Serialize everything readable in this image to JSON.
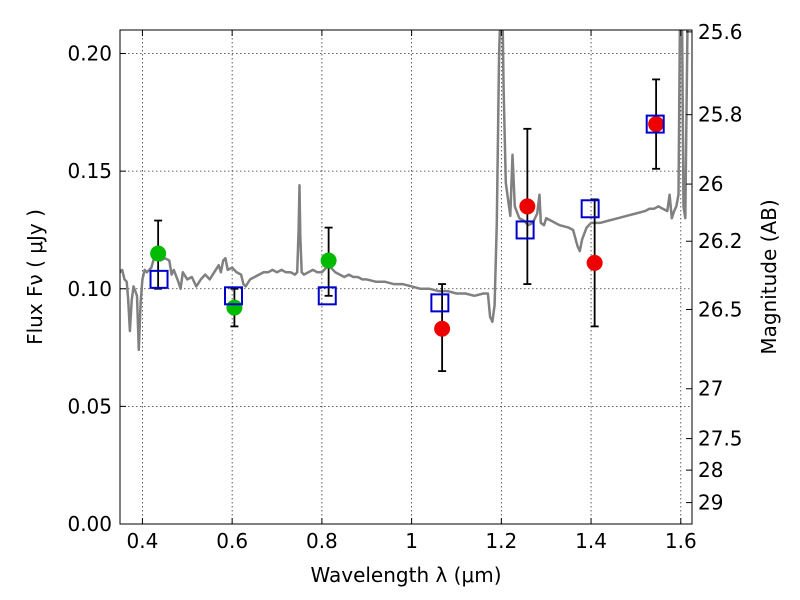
{
  "chart_data": {
    "type": "line",
    "title": "",
    "xlabel": "Wavelength  λ (μm)",
    "ylabel": "Flux  Fν  ( μJy )",
    "ylabel_right": "Magnitude (AB)",
    "xlim": [
      0.35,
      1.625
    ],
    "ylim": [
      0.0,
      0.21
    ],
    "grid": true,
    "x_ticks": [
      {
        "value": 0.4,
        "label": "0.4"
      },
      {
        "value": 0.6,
        "label": "0.6"
      },
      {
        "value": 0.8,
        "label": "0.8"
      },
      {
        "value": 1.0,
        "label": "1"
      },
      {
        "value": 1.2,
        "label": "1.2"
      },
      {
        "value": 1.4,
        "label": "1.4"
      },
      {
        "value": 1.6,
        "label": "1.6"
      }
    ],
    "y_ticks": [
      {
        "value": 0.0,
        "label": "0.00"
      },
      {
        "value": 0.05,
        "label": "0.05"
      },
      {
        "value": 0.1,
        "label": "0.10"
      },
      {
        "value": 0.15,
        "label": "0.15"
      },
      {
        "value": 0.2,
        "label": "0.20"
      }
    ],
    "mag_ticks": [
      {
        "flux": 0.2092,
        "label": "25.6"
      },
      {
        "flux": 0.174,
        "label": "25.8"
      },
      {
        "flux": 0.1445,
        "label": "26"
      },
      {
        "flux": 0.1202,
        "label": "26.2"
      },
      {
        "flux": 0.0912,
        "label": "26.5"
      },
      {
        "flux": 0.0575,
        "label": "27"
      },
      {
        "flux": 0.0363,
        "label": "27.5"
      },
      {
        "flux": 0.0229,
        "label": "28"
      },
      {
        "flux": 0.0091,
        "label": "29"
      }
    ],
    "colors": {
      "model": "#808080",
      "green": "#00bb00",
      "red": "#ee0000",
      "blue": "#0000cc",
      "error": "#000000"
    },
    "series": [
      {
        "kind": "model_spectrum",
        "points": [
          [
            0.35,
            0.107
          ],
          [
            0.355,
            0.108
          ],
          [
            0.36,
            0.104
          ],
          [
            0.365,
            0.103
          ],
          [
            0.368,
            0.096
          ],
          [
            0.372,
            0.082
          ],
          [
            0.376,
            0.095
          ],
          [
            0.38,
            0.101
          ],
          [
            0.384,
            0.099
          ],
          [
            0.388,
            0.097
          ],
          [
            0.392,
            0.074
          ],
          [
            0.396,
            0.094
          ],
          [
            0.4,
            0.104
          ],
          [
            0.405,
            0.108
          ],
          [
            0.41,
            0.107
          ],
          [
            0.42,
            0.109
          ],
          [
            0.43,
            0.116
          ],
          [
            0.435,
            0.118
          ],
          [
            0.44,
            0.112
          ],
          [
            0.45,
            0.113
          ],
          [
            0.46,
            0.112
          ],
          [
            0.465,
            0.106
          ],
          [
            0.47,
            0.108
          ],
          [
            0.48,
            0.103
          ],
          [
            0.485,
            0.1
          ],
          [
            0.49,
            0.107
          ],
          [
            0.5,
            0.104
          ],
          [
            0.51,
            0.105
          ],
          [
            0.52,
            0.101
          ],
          [
            0.53,
            0.104
          ],
          [
            0.54,
            0.106
          ],
          [
            0.55,
            0.104
          ],
          [
            0.56,
            0.107
          ],
          [
            0.57,
            0.11
          ],
          [
            0.575,
            0.107
          ],
          [
            0.58,
            0.112
          ],
          [
            0.585,
            0.113
          ],
          [
            0.59,
            0.108
          ],
          [
            0.6,
            0.109
          ],
          [
            0.61,
            0.107
          ],
          [
            0.62,
            0.106
          ],
          [
            0.625,
            0.102
          ],
          [
            0.63,
            0.101
          ],
          [
            0.64,
            0.104
          ],
          [
            0.65,
            0.105
          ],
          [
            0.66,
            0.106
          ],
          [
            0.67,
            0.107
          ],
          [
            0.68,
            0.107
          ],
          [
            0.69,
            0.108
          ],
          [
            0.7,
            0.107
          ],
          [
            0.71,
            0.108
          ],
          [
            0.72,
            0.107
          ],
          [
            0.73,
            0.107
          ],
          [
            0.74,
            0.106
          ],
          [
            0.745,
            0.107
          ],
          [
            0.748,
            0.125
          ],
          [
            0.75,
            0.144
          ],
          [
            0.752,
            0.122
          ],
          [
            0.755,
            0.107
          ],
          [
            0.76,
            0.106
          ],
          [
            0.77,
            0.107
          ],
          [
            0.78,
            0.108
          ],
          [
            0.79,
            0.107
          ],
          [
            0.8,
            0.107
          ],
          [
            0.81,
            0.109
          ],
          [
            0.815,
            0.112
          ],
          [
            0.82,
            0.109
          ],
          [
            0.83,
            0.107
          ],
          [
            0.84,
            0.106
          ],
          [
            0.85,
            0.105
          ],
          [
            0.86,
            0.106
          ],
          [
            0.87,
            0.105
          ],
          [
            0.88,
            0.105
          ],
          [
            0.89,
            0.104
          ],
          [
            0.9,
            0.104
          ],
          [
            0.92,
            0.103
          ],
          [
            0.94,
            0.103
          ],
          [
            0.96,
            0.102
          ],
          [
            0.98,
            0.102
          ],
          [
            1.0,
            0.101
          ],
          [
            1.02,
            0.1
          ],
          [
            1.04,
            0.1
          ],
          [
            1.06,
            0.099
          ],
          [
            1.08,
            0.099
          ],
          [
            1.1,
            0.098
          ],
          [
            1.12,
            0.098
          ],
          [
            1.14,
            0.097
          ],
          [
            1.16,
            0.098
          ],
          [
            1.17,
            0.098
          ],
          [
            1.175,
            0.088
          ],
          [
            1.18,
            0.086
          ],
          [
            1.185,
            0.093
          ],
          [
            1.19,
            0.128
          ],
          [
            1.195,
            0.2
          ],
          [
            1.197,
            0.212
          ],
          [
            1.203,
            0.212
          ],
          [
            1.205,
            0.185
          ],
          [
            1.21,
            0.145
          ],
          [
            1.22,
            0.131
          ],
          [
            1.225,
            0.157
          ],
          [
            1.23,
            0.135
          ],
          [
            1.24,
            0.13
          ],
          [
            1.25,
            0.129
          ],
          [
            1.26,
            0.127
          ],
          [
            1.27,
            0.128
          ],
          [
            1.28,
            0.132
          ],
          [
            1.285,
            0.14
          ],
          [
            1.288,
            0.128
          ],
          [
            1.295,
            0.127
          ],
          [
            1.3,
            0.13
          ],
          [
            1.31,
            0.129
          ],
          [
            1.32,
            0.128
          ],
          [
            1.33,
            0.127
          ],
          [
            1.35,
            0.126
          ],
          [
            1.36,
            0.125
          ],
          [
            1.37,
            0.118
          ],
          [
            1.375,
            0.116
          ],
          [
            1.38,
            0.121
          ],
          [
            1.39,
            0.126
          ],
          [
            1.4,
            0.128
          ],
          [
            1.42,
            0.128
          ],
          [
            1.44,
            0.129
          ],
          [
            1.46,
            0.13
          ],
          [
            1.48,
            0.131
          ],
          [
            1.5,
            0.132
          ],
          [
            1.52,
            0.133
          ],
          [
            1.53,
            0.134
          ],
          [
            1.54,
            0.134
          ],
          [
            1.55,
            0.135
          ],
          [
            1.56,
            0.134
          ],
          [
            1.57,
            0.133
          ],
          [
            1.575,
            0.14
          ],
          [
            1.58,
            0.13
          ],
          [
            1.585,
            0.133
          ],
          [
            1.59,
            0.135
          ],
          [
            1.595,
            0.14
          ],
          [
            1.598,
            0.212
          ],
          [
            1.603,
            0.212
          ],
          [
            1.606,
            0.135
          ],
          [
            1.61,
            0.13
          ],
          [
            1.615,
            0.212
          ],
          [
            1.625,
            0.212
          ]
        ]
      },
      {
        "kind": "green_circles",
        "points": [
          [
            0.435,
            0.115
          ],
          [
            0.605,
            0.092
          ],
          [
            0.815,
            0.112
          ]
        ]
      },
      {
        "kind": "red_circles",
        "points": [
          [
            1.068,
            0.083
          ],
          [
            1.258,
            0.135
          ],
          [
            1.408,
            0.111
          ],
          [
            1.545,
            0.17
          ]
        ]
      },
      {
        "kind": "blue_squares",
        "points": [
          [
            0.437,
            0.104
          ],
          [
            0.603,
            0.097
          ],
          [
            0.812,
            0.097
          ],
          [
            1.063,
            0.094
          ],
          [
            1.253,
            0.125
          ],
          [
            1.398,
            0.134
          ],
          [
            1.543,
            0.17
          ]
        ]
      },
      {
        "kind": "error_bars",
        "bars": [
          {
            "x": 0.435,
            "low": 0.1,
            "high": 0.129
          },
          {
            "x": 0.605,
            "low": 0.084,
            "high": 0.1
          },
          {
            "x": 0.815,
            "low": 0.097,
            "high": 0.126
          },
          {
            "x": 1.068,
            "low": 0.065,
            "high": 0.102
          },
          {
            "x": 1.258,
            "low": 0.102,
            "high": 0.168
          },
          {
            "x": 1.408,
            "low": 0.084,
            "high": 0.138
          },
          {
            "x": 1.545,
            "low": 0.151,
            "high": 0.189
          }
        ]
      }
    ]
  }
}
